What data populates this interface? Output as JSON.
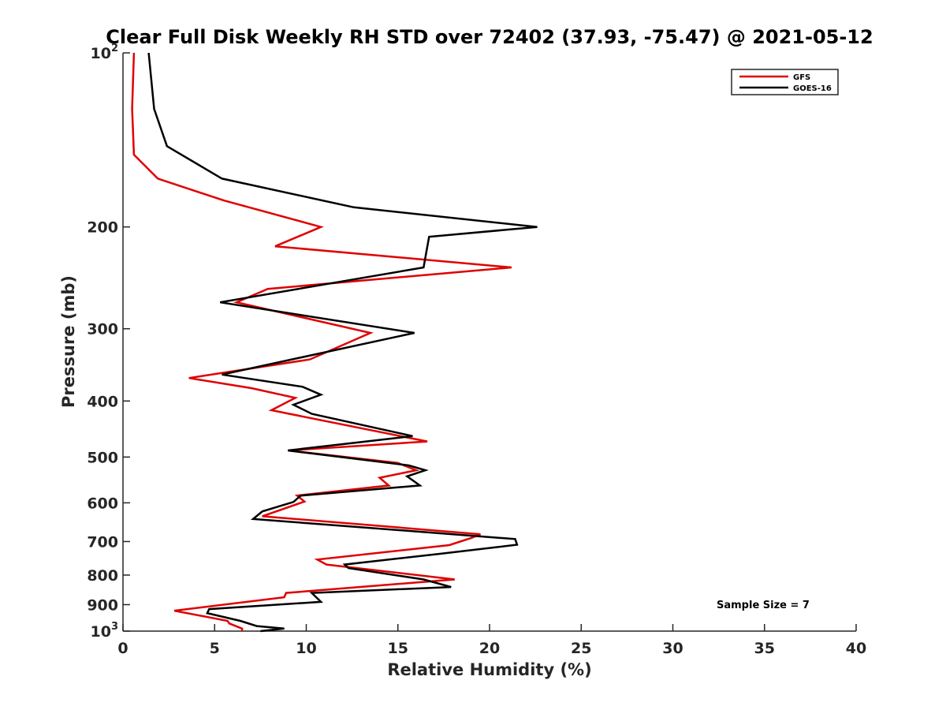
{
  "chart_data": {
    "type": "line",
    "title": "Clear Full Disk Weekly RH STD over 72402 (37.93, -75.47) @ 2021-05-12",
    "xlabel": "Relative Humidity (%)",
    "ylabel": "Pressure (mb)",
    "xlim": [
      0,
      40
    ],
    "ylim": [
      100,
      1000
    ],
    "yscale": "log",
    "yreversed": true,
    "x_ticks": [
      0,
      5,
      10,
      15,
      20,
      25,
      30,
      35,
      40
    ],
    "x_tick_labels": [
      "0",
      "5",
      "10",
      "15",
      "20",
      "25",
      "30",
      "35",
      "40"
    ],
    "y_ticks": [
      {
        "value": 100,
        "base": "10",
        "exp": "2"
      },
      {
        "value": 200,
        "label": "200"
      },
      {
        "value": 300,
        "label": "300"
      },
      {
        "value": 400,
        "label": "400"
      },
      {
        "value": 500,
        "label": "500"
      },
      {
        "value": 600,
        "label": "600"
      },
      {
        "value": 700,
        "label": "700"
      },
      {
        "value": 800,
        "label": "800"
      },
      {
        "value": 900,
        "label": "900"
      },
      {
        "value": 1000,
        "base": "10",
        "exp": "3"
      }
    ],
    "grid": false,
    "legend_position": "top-right",
    "annotation": "Sample Size = 7",
    "series": [
      {
        "name": "GFS",
        "color": "#e00000",
        "points": [
          [
            0.6,
            100
          ],
          [
            0.5,
            125
          ],
          [
            0.6,
            150
          ],
          [
            1.9,
            165
          ],
          [
            5.5,
            180
          ],
          [
            10.8,
            200
          ],
          [
            8.3,
            216
          ],
          [
            21.2,
            235
          ],
          [
            7.9,
            256
          ],
          [
            6.2,
            270
          ],
          [
            13.5,
            305
          ],
          [
            10.2,
            339
          ],
          [
            3.6,
            365
          ],
          [
            7.0,
            380
          ],
          [
            9.4,
            395
          ],
          [
            8.1,
            415
          ],
          [
            16.6,
            470
          ],
          [
            9.0,
            487
          ],
          [
            15.0,
            512
          ],
          [
            16.0,
            527
          ],
          [
            14.0,
            543
          ],
          [
            14.5,
            560
          ],
          [
            9.5,
            583
          ],
          [
            9.9,
            597
          ],
          [
            7.6,
            633
          ],
          [
            19.5,
            680
          ],
          [
            19.0,
            690
          ],
          [
            17.8,
            710
          ],
          [
            10.6,
            752
          ],
          [
            11.1,
            767
          ],
          [
            18.1,
            814
          ],
          [
            8.9,
            859
          ],
          [
            8.8,
            874
          ],
          [
            2.8,
            922
          ],
          [
            5.7,
            960
          ],
          [
            5.8,
            970
          ],
          [
            6.5,
            990
          ],
          [
            6.5,
            1000
          ]
        ]
      },
      {
        "name": "GOES-16",
        "color": "#000000",
        "points": [
          [
            1.4,
            100
          ],
          [
            1.7,
            125
          ],
          [
            2.4,
            145
          ],
          [
            5.4,
            165
          ],
          [
            12.6,
            185
          ],
          [
            22.6,
            200
          ],
          [
            16.7,
            208
          ],
          [
            16.4,
            235
          ],
          [
            5.3,
            270
          ],
          [
            15.9,
            305
          ],
          [
            5.4,
            360
          ],
          [
            9.8,
            378
          ],
          [
            10.8,
            390
          ],
          [
            9.3,
            406
          ],
          [
            10.3,
            421
          ],
          [
            15.8,
            460
          ],
          [
            9.0,
            487
          ],
          [
            15.6,
            517
          ],
          [
            16.5,
            527
          ],
          [
            15.5,
            540
          ],
          [
            16.2,
            560
          ],
          [
            9.7,
            583
          ],
          [
            9.3,
            598
          ],
          [
            7.6,
            621
          ],
          [
            7.1,
            640
          ],
          [
            21.4,
            693
          ],
          [
            21.5,
            709
          ],
          [
            17.3,
            735
          ],
          [
            12.1,
            767
          ],
          [
            12.3,
            778
          ],
          [
            16.4,
            814
          ],
          [
            17.9,
            839
          ],
          [
            10.3,
            859
          ],
          [
            10.8,
            890
          ],
          [
            4.7,
            916
          ],
          [
            4.6,
            931
          ],
          [
            6.4,
            960
          ],
          [
            7.3,
            980
          ],
          [
            8.8,
            990
          ],
          [
            7.5,
            1000
          ]
        ]
      }
    ]
  }
}
